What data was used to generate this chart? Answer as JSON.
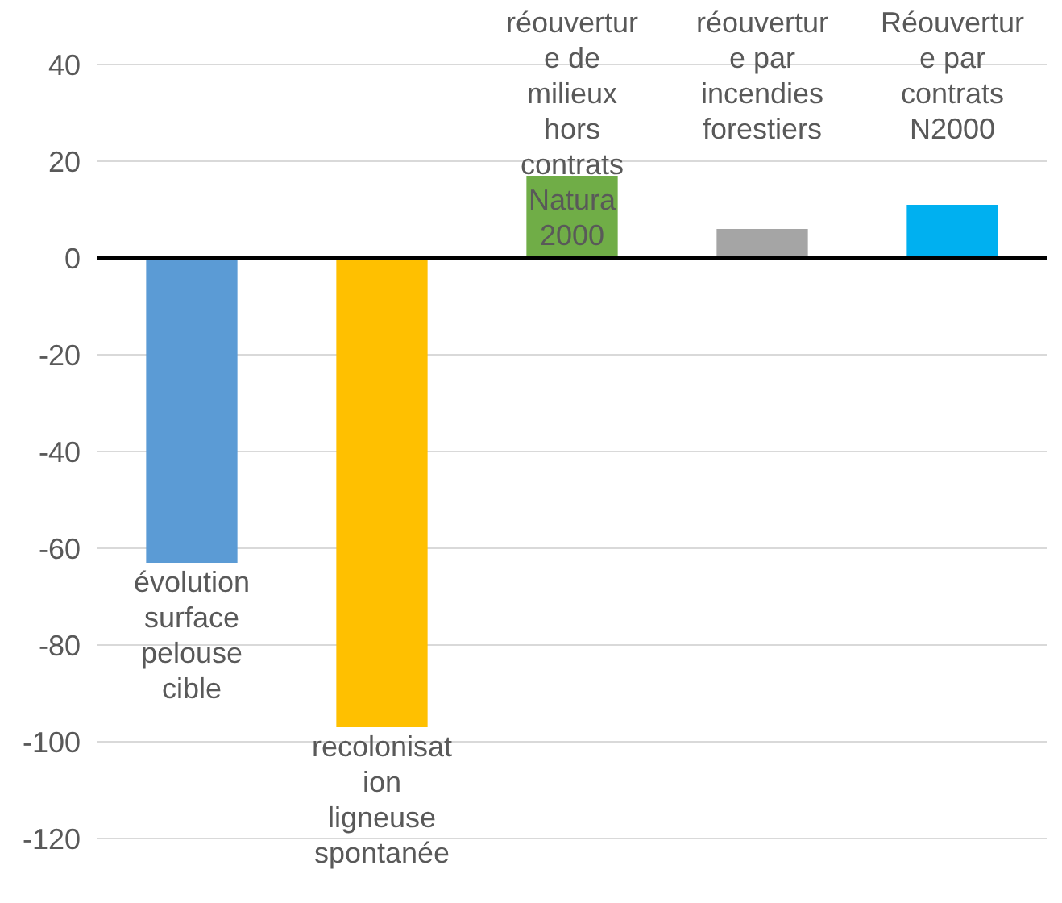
{
  "chart_data": {
    "type": "bar",
    "categories": [
      "évolution surface pelouse cible",
      "recolonisation ligneuse spontanée",
      "réouverture de milieux hors contrats Natura 2000",
      "réouverture par incendies forestiers",
      "Réouverture par contrats N2000"
    ],
    "values": [
      -63,
      -97,
      17,
      6,
      11
    ],
    "colors": [
      "#5b9bd5",
      "#ffc000",
      "#70ad47",
      "#a5a5a5",
      "#00b0f0"
    ],
    "ylim": [
      -120,
      40
    ],
    "yticks": [
      -120,
      -100,
      -80,
      -60,
      -40,
      -20,
      0,
      20,
      40
    ],
    "grid": "y"
  }
}
